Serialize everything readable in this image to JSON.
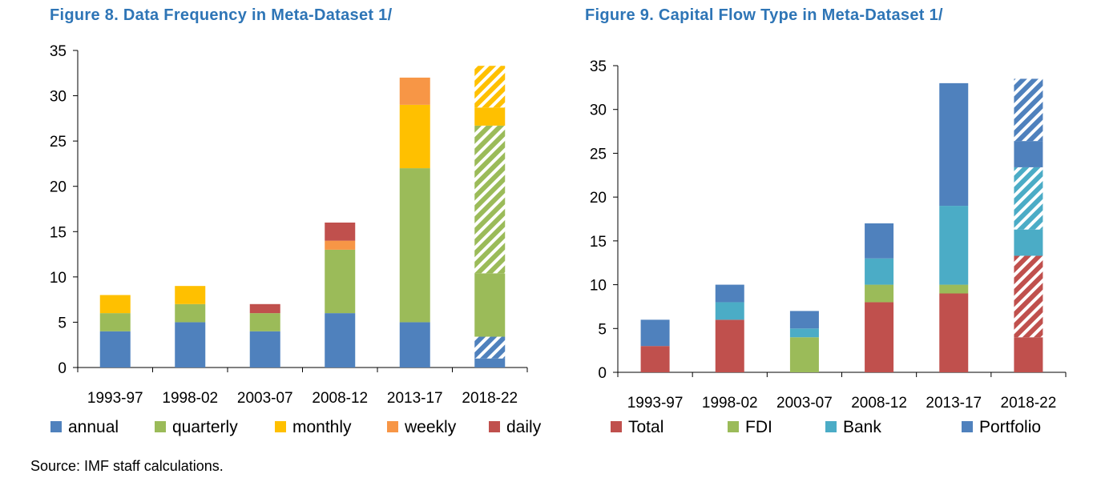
{
  "figures": {
    "left": {
      "title": "Figure 8. Data Frequency in Meta-Dataset 1/"
    },
    "right": {
      "title": "Figure 9. Capital Flow Type in Meta-Dataset 1/"
    }
  },
  "source": "Source: IMF staff calculations.",
  "chart_data": [
    {
      "type": "bar",
      "stacked": true,
      "title": "Figure 8. Data Frequency in Meta-Dataset 1/",
      "categories": [
        "1993-97",
        "1998-02",
        "2003-07",
        "2008-12",
        "2013-17",
        "2018-22"
      ],
      "ylim": [
        0,
        35
      ],
      "yticks": [
        0,
        5,
        10,
        15,
        20,
        25,
        30,
        35
      ],
      "legend_position": "bottom",
      "series": [
        {
          "name": "annual",
          "color": "#4f81bd",
          "values": [
            4,
            5,
            4,
            6,
            5,
            1
          ],
          "hatched_values": [
            0,
            0,
            0,
            0,
            0,
            2.4
          ]
        },
        {
          "name": "quarterly",
          "color": "#9bbb59",
          "values": [
            2,
            2,
            2,
            7,
            17,
            7
          ],
          "hatched_values": [
            0,
            0,
            0,
            0,
            0,
            16.3
          ]
        },
        {
          "name": "monthly",
          "color": "#ffc000",
          "values": [
            2,
            2,
            0,
            0,
            7,
            2
          ],
          "hatched_values": [
            0,
            0,
            0,
            0,
            0,
            4.6
          ]
        },
        {
          "name": "weekly",
          "color": "#f79646",
          "values": [
            0,
            0,
            0,
            1,
            3,
            0
          ],
          "hatched_values": [
            0,
            0,
            0,
            0,
            0,
            0
          ]
        },
        {
          "name": "daily",
          "color": "#c0504d",
          "values": [
            0,
            0,
            1,
            2,
            0,
            0
          ],
          "hatched_values": [
            0,
            0,
            0,
            0,
            0,
            0
          ]
        }
      ]
    },
    {
      "type": "bar",
      "stacked": true,
      "title": "Figure 9. Capital Flow Type in Meta-Dataset 1/",
      "categories": [
        "1993-97",
        "1998-02",
        "2003-07",
        "2008-12",
        "2013-17",
        "2018-22"
      ],
      "ylim": [
        0,
        35
      ],
      "yticks": [
        0,
        5,
        10,
        15,
        20,
        25,
        30,
        35
      ],
      "legend_position": "bottom",
      "series": [
        {
          "name": "Total",
          "color": "#c0504d",
          "values": [
            3,
            6,
            0,
            8,
            9,
            4
          ],
          "hatched_values": [
            0,
            0,
            0,
            0,
            0,
            9.3
          ]
        },
        {
          "name": "FDI",
          "color": "#9bbb59",
          "values": [
            0,
            0,
            4,
            2,
            1,
            0
          ],
          "hatched_values": [
            0,
            0,
            0,
            0,
            0,
            0
          ]
        },
        {
          "name": "Bank",
          "color": "#4bacc6",
          "values": [
            0,
            2,
            1,
            3,
            9,
            3
          ],
          "hatched_values": [
            0,
            0,
            0,
            0,
            0,
            7.1
          ]
        },
        {
          "name": "Portfolio",
          "color": "#4f81bd",
          "values": [
            3,
            2,
            2,
            4,
            14,
            3
          ],
          "hatched_values": [
            0,
            0,
            0,
            0,
            0,
            7.1
          ]
        }
      ]
    }
  ]
}
